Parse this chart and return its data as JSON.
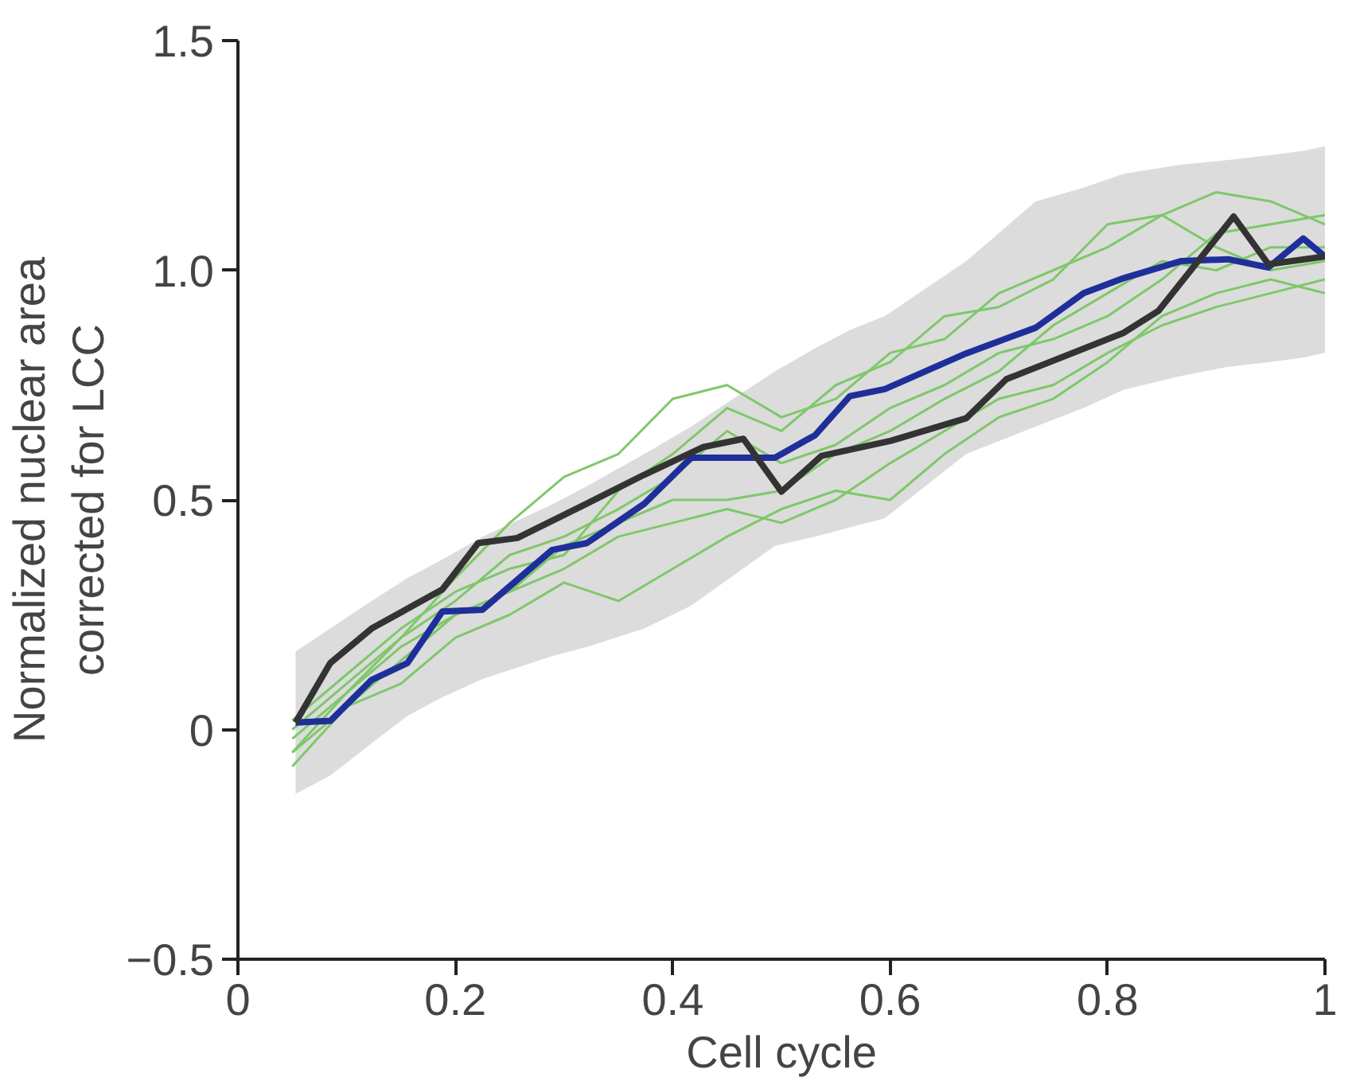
{
  "chart_data": {
    "type": "line",
    "xlabel": "Cell cycle",
    "ylabel": "Normalized nuclear area\ncorrected for LCC",
    "xlim": [
      0,
      1
    ],
    "ylim": [
      -0.5,
      1.5
    ],
    "xticks": [
      0,
      0.2,
      0.4,
      0.6,
      0.8,
      1
    ],
    "yticks": [
      {
        "value": -0.5,
        "label": "−0.5"
      },
      0,
      0.5,
      {
        "value": 1,
        "label": "1.0"
      },
      1.5
    ],
    "grid": false,
    "marker": "none",
    "line_style": "solid",
    "series": [
      {
        "color": "#7ec86a",
        "x": [
          0.05,
          0.1,
          0.15,
          0.2,
          0.25,
          0.3,
          0.35,
          0.4,
          0.45,
          0.5,
          0.55,
          0.6,
          0.65,
          0.7,
          0.75,
          0.8,
          0.85,
          0.9,
          0.95,
          1.0
        ],
        "values": [
          -0.05,
          0.08,
          0.2,
          0.33,
          0.45,
          0.55,
          0.6,
          0.72,
          0.75,
          0.68,
          0.72,
          0.82,
          0.85,
          0.95,
          1.0,
          1.05,
          1.12,
          1.17,
          1.15,
          1.1
        ]
      },
      {
        "color": "#7ec86a",
        "x": [
          0.05,
          0.1,
          0.15,
          0.2,
          0.25,
          0.3,
          0.35,
          0.4,
          0.45,
          0.5,
          0.55,
          0.6,
          0.65,
          0.7,
          0.75,
          0.8,
          0.85,
          0.9,
          0.95,
          1.0
        ],
        "values": [
          -0.08,
          0.05,
          0.1,
          0.2,
          0.25,
          0.32,
          0.28,
          0.35,
          0.42,
          0.48,
          0.52,
          0.5,
          0.6,
          0.68,
          0.72,
          0.8,
          0.9,
          0.95,
          0.98,
          0.95
        ]
      },
      {
        "color": "#7ec86a",
        "x": [
          0.05,
          0.1,
          0.15,
          0.2,
          0.25,
          0.3,
          0.35,
          0.4,
          0.45,
          0.5,
          0.55,
          0.6,
          0.65,
          0.7,
          0.75,
          0.8,
          0.85,
          0.9,
          0.95,
          1.0
        ],
        "values": [
          0.0,
          0.1,
          0.2,
          0.28,
          0.38,
          0.42,
          0.48,
          0.55,
          0.65,
          0.58,
          0.62,
          0.7,
          0.75,
          0.82,
          0.85,
          0.9,
          0.98,
          1.08,
          1.1,
          1.12
        ]
      },
      {
        "color": "#7ec86a",
        "x": [
          0.05,
          0.1,
          0.15,
          0.2,
          0.25,
          0.3,
          0.35,
          0.4,
          0.45,
          0.5,
          0.55,
          0.6,
          0.65,
          0.7,
          0.75,
          0.8,
          0.85,
          0.9,
          0.95,
          1.0
        ],
        "values": [
          -0.05,
          0.05,
          0.15,
          0.25,
          0.3,
          0.4,
          0.45,
          0.5,
          0.5,
          0.52,
          0.6,
          0.65,
          0.72,
          0.78,
          0.88,
          0.95,
          1.02,
          1.0,
          1.05,
          1.05
        ]
      },
      {
        "color": "#7ec86a",
        "x": [
          0.05,
          0.1,
          0.15,
          0.2,
          0.25,
          0.3,
          0.35,
          0.4,
          0.45,
          0.5,
          0.55,
          0.6,
          0.65,
          0.7,
          0.75,
          0.8,
          0.85,
          0.9,
          0.95,
          1.0
        ],
        "values": [
          0.02,
          0.12,
          0.22,
          0.3,
          0.35,
          0.38,
          0.52,
          0.6,
          0.7,
          0.65,
          0.75,
          0.8,
          0.9,
          0.92,
          0.98,
          1.1,
          1.12,
          1.05,
          1.0,
          1.02
        ]
      },
      {
        "color": "#7ec86a",
        "x": [
          0.05,
          0.1,
          0.15,
          0.2,
          0.25,
          0.3,
          0.35,
          0.4,
          0.45,
          0.5,
          0.55,
          0.6,
          0.65,
          0.7,
          0.75,
          0.8,
          0.85,
          0.9,
          0.95,
          1.0
        ],
        "values": [
          -0.02,
          0.08,
          0.18,
          0.25,
          0.3,
          0.35,
          0.42,
          0.45,
          0.48,
          0.45,
          0.5,
          0.58,
          0.65,
          0.72,
          0.75,
          0.82,
          0.88,
          0.92,
          0.95,
          0.98
        ]
      },
      {
        "color": "#1f2f9a",
        "x": [
          0.053,
          0.085,
          0.123,
          0.156,
          0.188,
          0.225,
          0.289,
          0.321,
          0.374,
          0.417,
          0.494,
          0.531,
          0.563,
          0.595,
          0.67,
          0.734,
          0.778,
          0.815,
          0.868,
          0.911,
          0.948,
          0.98,
          1.0
        ],
        "values": [
          0.015,
          0.019,
          0.108,
          0.145,
          0.257,
          0.261,
          0.391,
          0.406,
          0.492,
          0.592,
          0.592,
          0.641,
          0.726,
          0.741,
          0.819,
          0.875,
          0.95,
          0.983,
          1.02,
          1.024,
          1.006,
          1.069,
          1.03
        ],
        "lower": [
          -0.14,
          -0.1,
          -0.03,
          0.03,
          0.07,
          0.11,
          0.16,
          0.18,
          0.22,
          0.27,
          0.4,
          0.42,
          0.44,
          0.46,
          0.6,
          0.66,
          0.7,
          0.74,
          0.77,
          0.79,
          0.8,
          0.81,
          0.82
        ],
        "upper": [
          0.17,
          0.22,
          0.28,
          0.33,
          0.37,
          0.42,
          0.49,
          0.53,
          0.6,
          0.66,
          0.78,
          0.83,
          0.87,
          0.9,
          1.02,
          1.15,
          1.18,
          1.21,
          1.23,
          1.24,
          1.25,
          1.26,
          1.27
        ]
      },
      {
        "color": "#333333",
        "x": [
          0.053,
          0.085,
          0.123,
          0.188,
          0.221,
          0.257,
          0.321,
          0.374,
          0.428,
          0.465,
          0.5,
          0.537,
          0.601,
          0.67,
          0.707,
          0.815,
          0.847,
          0.916,
          0.948,
          1.0
        ],
        "values": [
          0.015,
          0.145,
          0.22,
          0.305,
          0.406,
          0.417,
          0.492,
          0.555,
          0.615,
          0.633,
          0.518,
          0.596,
          0.629,
          0.678,
          0.763,
          0.864,
          0.912,
          1.117,
          1.013,
          1.03
        ]
      }
    ]
  }
}
